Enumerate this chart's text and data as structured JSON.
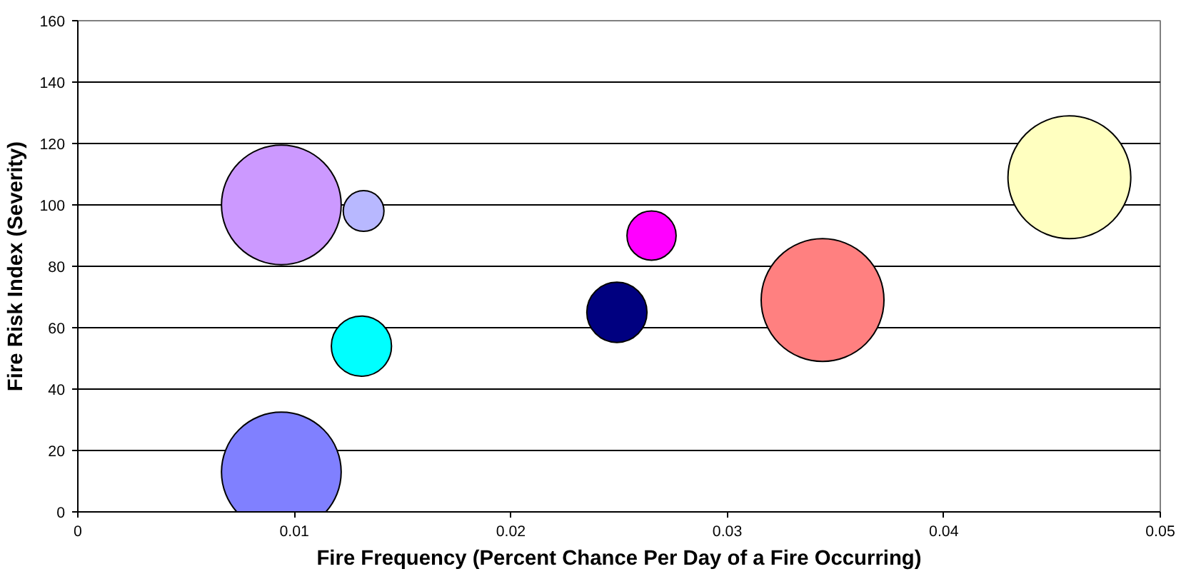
{
  "chart_data": {
    "type": "bubble",
    "xlabel": "Fire Frequency (Percent Chance Per Day of a Fire Occurring)",
    "ylabel": "Fire Risk Index (Severity)",
    "x": [
      0.0094,
      0.0132,
      0.0131,
      0.0094,
      0.0249,
      0.0265,
      0.0344,
      0.0458
    ],
    "values": [
      100,
      98,
      54,
      13,
      65,
      90,
      69,
      109
    ],
    "sizes": [
      0.95,
      0.11,
      0.24,
      0.95,
      0.24,
      0.16,
      1,
      1
    ],
    "colors": [
      "#cc99ff",
      "#b8b8ff",
      "#00ffff",
      "#8080ff",
      "#000080",
      "#ff00ff",
      "#ff8080",
      "#ffffc0"
    ],
    "xlim": [
      0,
      0.05
    ],
    "xticks": [
      0,
      0.01,
      0.02,
      0.03,
      0.04,
      0.05
    ],
    "ylim": [
      0,
      160
    ],
    "yticks": [
      0,
      20,
      40,
      60,
      80,
      100,
      120,
      140,
      160
    ],
    "grid": "y"
  }
}
